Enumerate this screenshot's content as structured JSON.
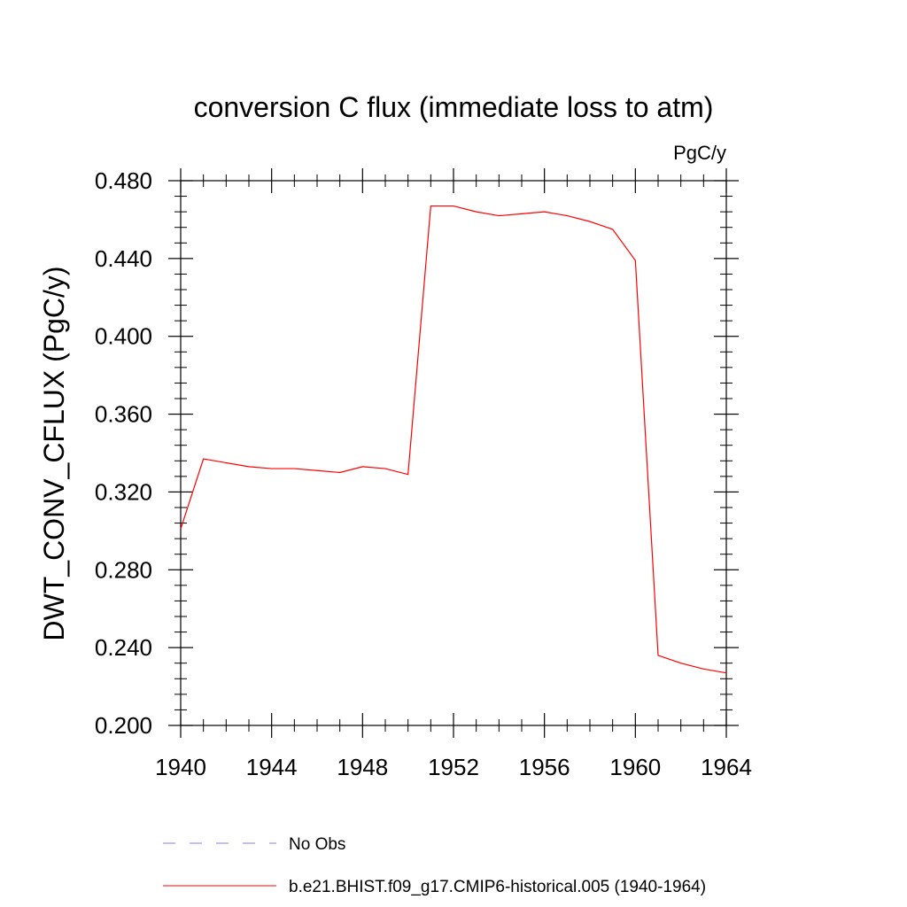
{
  "chart_data": {
    "type": "line",
    "title": "conversion C flux (immediate loss to atm)",
    "units": "PgC/y",
    "ylabel": "DWT_CONV_CFLUX  (PgC/y)",
    "xlabel": "",
    "xlim": [
      1940,
      1964
    ],
    "ylim": [
      0.2,
      0.48
    ],
    "x_ticks": [
      1940,
      1944,
      1948,
      1952,
      1956,
      1960,
      1964
    ],
    "x_tick_labels": [
      "1940",
      "1944",
      "1948",
      "1952",
      "1956",
      "1960",
      "1964"
    ],
    "y_ticks": [
      0.2,
      0.24,
      0.28,
      0.32,
      0.36,
      0.4,
      0.44,
      0.48
    ],
    "y_tick_labels": [
      "0.200",
      "0.240",
      "0.280",
      "0.320",
      "0.360",
      "0.400",
      "0.440",
      "0.480"
    ],
    "grid": false,
    "legend_placement": "bottom",
    "series": [
      {
        "name": "No Obs",
        "color": "#7f7fff",
        "dashed": true,
        "x": [],
        "values": []
      },
      {
        "name": "b.e21.BHIST.f09_g17.CMIP6-historical.005 (1940-1964)",
        "color": "#ff0000",
        "dashed": false,
        "x": [
          1940,
          1941,
          1942,
          1943,
          1944,
          1945,
          1946,
          1947,
          1948,
          1949,
          1950,
          1951,
          1952,
          1953,
          1954,
          1955,
          1956,
          1957,
          1958,
          1959,
          1960,
          1961,
          1962,
          1963,
          1964
        ],
        "values": [
          0.301,
          0.337,
          0.335,
          0.333,
          0.332,
          0.332,
          0.331,
          0.33,
          0.333,
          0.332,
          0.329,
          0.467,
          0.467,
          0.464,
          0.462,
          0.463,
          0.464,
          0.462,
          0.459,
          0.455,
          0.439,
          0.236,
          0.232,
          0.229,
          0.227
        ]
      }
    ]
  }
}
